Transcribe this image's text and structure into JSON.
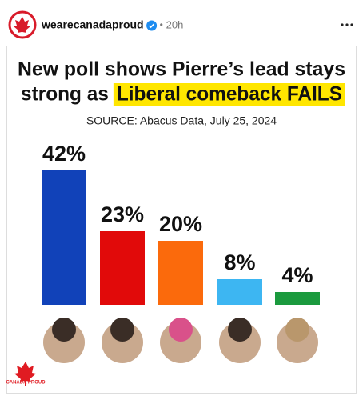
{
  "post": {
    "username": "wearecanadaproud",
    "time": "20h"
  },
  "chart_data": {
    "type": "bar",
    "title_lines": [
      "New poll shows Pierre’s lead stays",
      "strong as"
    ],
    "title_highlight": "Liberal comeback FAILS",
    "subtitle": "SOURCE: Abacus Data, July 25, 2024",
    "categories": [
      null,
      null,
      null,
      null,
      null
    ],
    "values": [
      42,
      23,
      20,
      8,
      4
    ],
    "value_labels": [
      "42%",
      "23%",
      "20%",
      "8%",
      "4%"
    ],
    "colors": [
      "#1142b9",
      "#e10a0a",
      "#fb6a0c",
      "#3db6f2",
      "#1b9a3e"
    ],
    "logo_text": "CANADA PROUD"
  }
}
